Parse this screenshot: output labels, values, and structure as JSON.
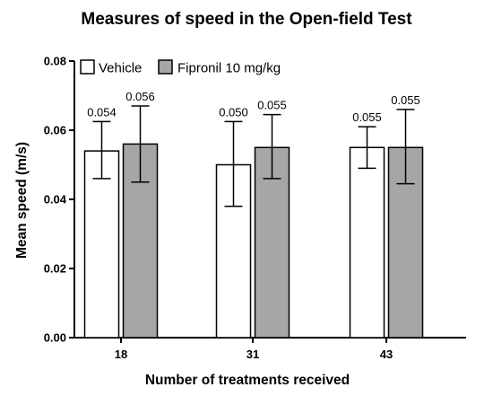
{
  "chart_data": {
    "type": "bar",
    "title": "Measures of speed in the Open-field Test",
    "xlabel": "Number of treatments received",
    "ylabel": "Mean speed (m/s)",
    "ylim": [
      0,
      0.08
    ],
    "yticks": [
      "0.00",
      "0.02",
      "0.04",
      "0.06",
      "0.08"
    ],
    "categories": [
      "18",
      "31",
      "43"
    ],
    "series": [
      {
        "name": "Vehicle",
        "color": "#ffffff",
        "values": [
          0.054,
          0.05,
          0.055
        ],
        "error_low": [
          0.046,
          0.038,
          0.049
        ],
        "error_high": [
          0.0625,
          0.0625,
          0.061
        ],
        "labels": [
          "0.054",
          "0.050",
          "0.055"
        ]
      },
      {
        "name": "Fipronil 10 mg/kg",
        "color": "#a6a6a6",
        "values": [
          0.056,
          0.055,
          0.055
        ],
        "error_low": [
          0.045,
          0.046,
          0.0445
        ],
        "error_high": [
          0.067,
          0.0645,
          0.066
        ],
        "labels": [
          "0.056",
          "0.055",
          "0.055"
        ]
      }
    ],
    "legend": "top-left",
    "grid": false
  }
}
